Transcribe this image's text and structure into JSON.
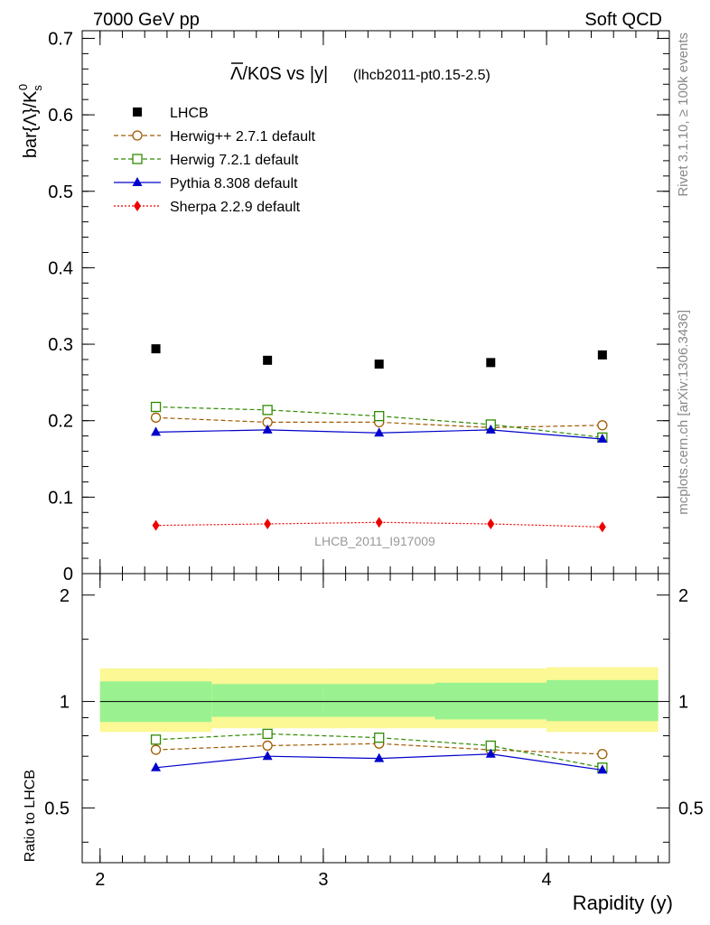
{
  "header": {
    "left": "7000 GeV pp",
    "right": "Soft QCD"
  },
  "side_labels": {
    "rivet": "Rivet 3.1.10, ≥ 100k events",
    "mcplots": "mcplots.cern.ch [arXiv:1306.3436]"
  },
  "chart_data": {
    "type": "line",
    "title": {
      "main": "Λ/K0S vs |y|",
      "overline_char": "Λ",
      "rest": "/K0S vs |y|",
      "sub": "(lhcb2011-pt0.15-2.5)"
    },
    "ylabel": "bar{Λ}/K",
    "ylabel_sup": "0",
    "ylabel_sub": "s",
    "ratio_ylabel": "Ratio to LHCB",
    "xlabel": "Rapidity (y)",
    "watermark": "LHCB_2011_I917009",
    "xlim": [
      1.92,
      4.55
    ],
    "ylim": [
      0,
      0.71
    ],
    "ratio_ylim": [
      0.35,
      2.3
    ],
    "ratio_log": true,
    "x_ticks": [
      "2",
      "3",
      "4"
    ],
    "y_ticks": [
      "0",
      "0.1",
      "0.2",
      "0.3",
      "0.4",
      "0.5",
      "0.6",
      "0.7"
    ],
    "ratio_ticks": [
      "0.5",
      "1",
      "2"
    ],
    "x": [
      2.25,
      2.75,
      3.25,
      3.75,
      4.25
    ],
    "bin_edges": [
      2.0,
      2.5,
      3.0,
      3.5,
      4.0,
      4.5
    ],
    "data": {
      "name": "LHCB",
      "values": [
        0.294,
        0.279,
        0.274,
        0.276,
        0.286
      ]
    },
    "band_inner": [
      [
        0.875,
        1.14
      ],
      [
        0.905,
        1.12
      ],
      [
        0.905,
        1.12
      ],
      [
        0.89,
        1.13
      ],
      [
        0.88,
        1.15
      ]
    ],
    "band_outer": [
      [
        0.82,
        1.24
      ],
      [
        0.84,
        1.24
      ],
      [
        0.84,
        1.24
      ],
      [
        0.84,
        1.24
      ],
      [
        0.82,
        1.25
      ]
    ],
    "series": [
      {
        "name": "Herwig++ 2.7.1 default",
        "color": "#a05a00",
        "marker": "circle-open",
        "dash": "5,3",
        "values": [
          0.204,
          0.198,
          0.198,
          0.191,
          0.194
        ],
        "ratio": [
          0.73,
          0.75,
          0.76,
          0.73,
          0.71
        ]
      },
      {
        "name": "Herwig 7.2.1 default",
        "color": "#2e8b00",
        "marker": "square-open",
        "dash": "5,3",
        "values": [
          0.218,
          0.214,
          0.206,
          0.195,
          0.178
        ],
        "ratio": [
          0.78,
          0.81,
          0.79,
          0.75,
          0.65
        ]
      },
      {
        "name": "Pythia 8.308 default",
        "color": "#0000cc",
        "marker": "triangle",
        "dash": "",
        "values": [
          0.185,
          0.188,
          0.184,
          0.188,
          0.176
        ],
        "ratio": [
          0.65,
          0.7,
          0.69,
          0.71,
          0.64
        ]
      },
      {
        "name": "Sherpa 2.2.9 default",
        "color": "#ee0000",
        "marker": "diamond",
        "dash": "2,2",
        "values": [
          0.063,
          0.065,
          0.067,
          0.065,
          0.061
        ],
        "ratio": []
      }
    ]
  }
}
